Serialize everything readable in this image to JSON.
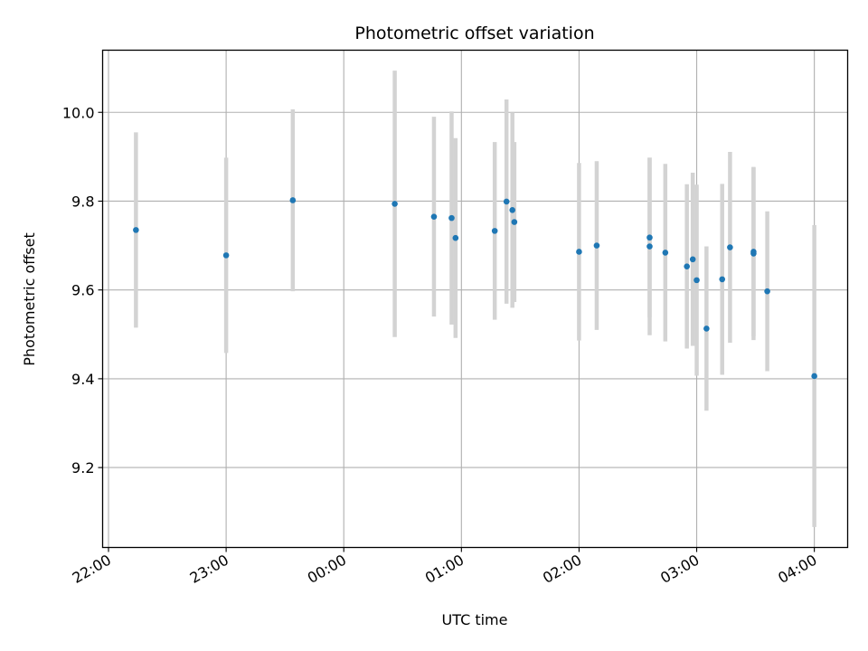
{
  "chart_data": {
    "type": "scatter",
    "title": "Photometric offset variation",
    "xlabel": "UTC time",
    "ylabel": "Photometric offset",
    "x_ticks": [
      "22:00",
      "23:00",
      "00:00",
      "01:00",
      "02:00",
      "03:00",
      "04:00"
    ],
    "y_ticks": [
      "9.2",
      "9.4",
      "9.6",
      "9.8",
      "10.0"
    ],
    "xlim": [
      "21:57",
      "04:17"
    ],
    "ylim": [
      9.02,
      10.14
    ],
    "grid": true,
    "point_color": "#1f77b4",
    "errorbar_color": "#d3d3d3",
    "points": [
      {
        "x": "22:14",
        "y": 9.735,
        "err": 0.22
      },
      {
        "x": "23:00",
        "y": 9.678,
        "err": 0.22
      },
      {
        "x": "23:34",
        "y": 9.802,
        "err": 0.205
      },
      {
        "x": "00:26",
        "y": 9.794,
        "err": 0.3
      },
      {
        "x": "00:46",
        "y": 9.765,
        "err": 0.225
      },
      {
        "x": "00:55",
        "y": 9.762,
        "err": 0.24
      },
      {
        "x": "00:57",
        "y": 9.717,
        "err": 0.225
      },
      {
        "x": "01:17",
        "y": 9.733,
        "err": 0.2
      },
      {
        "x": "01:23",
        "y": 9.799,
        "err": 0.23
      },
      {
        "x": "01:26",
        "y": 9.78,
        "err": 0.22
      },
      {
        "x": "01:27",
        "y": 9.753,
        "err": 0.18
      },
      {
        "x": "02:00",
        "y": 9.686,
        "err": 0.2
      },
      {
        "x": "02:09",
        "y": 9.7,
        "err": 0.19
      },
      {
        "x": "02:36",
        "y": 9.718,
        "err": 0.18
      },
      {
        "x": "02:36",
        "y": 9.698,
        "err": 0.2
      },
      {
        "x": "02:44",
        "y": 9.684,
        "err": 0.2
      },
      {
        "x": "02:55",
        "y": 9.653,
        "err": 0.185
      },
      {
        "x": "02:58",
        "y": 9.669,
        "err": 0.195
      },
      {
        "x": "03:00",
        "y": 9.622,
        "err": 0.215
      },
      {
        "x": "03:05",
        "y": 9.513,
        "err": 0.185
      },
      {
        "x": "03:13",
        "y": 9.624,
        "err": 0.215
      },
      {
        "x": "03:17",
        "y": 9.696,
        "err": 0.215
      },
      {
        "x": "03:29",
        "y": 9.686,
        "err": 0.19
      },
      {
        "x": "03:29",
        "y": 9.682,
        "err": 0.195
      },
      {
        "x": "03:36",
        "y": 9.597,
        "err": 0.18
      },
      {
        "x": "04:00",
        "y": 9.406,
        "err": 0.34
      }
    ]
  }
}
